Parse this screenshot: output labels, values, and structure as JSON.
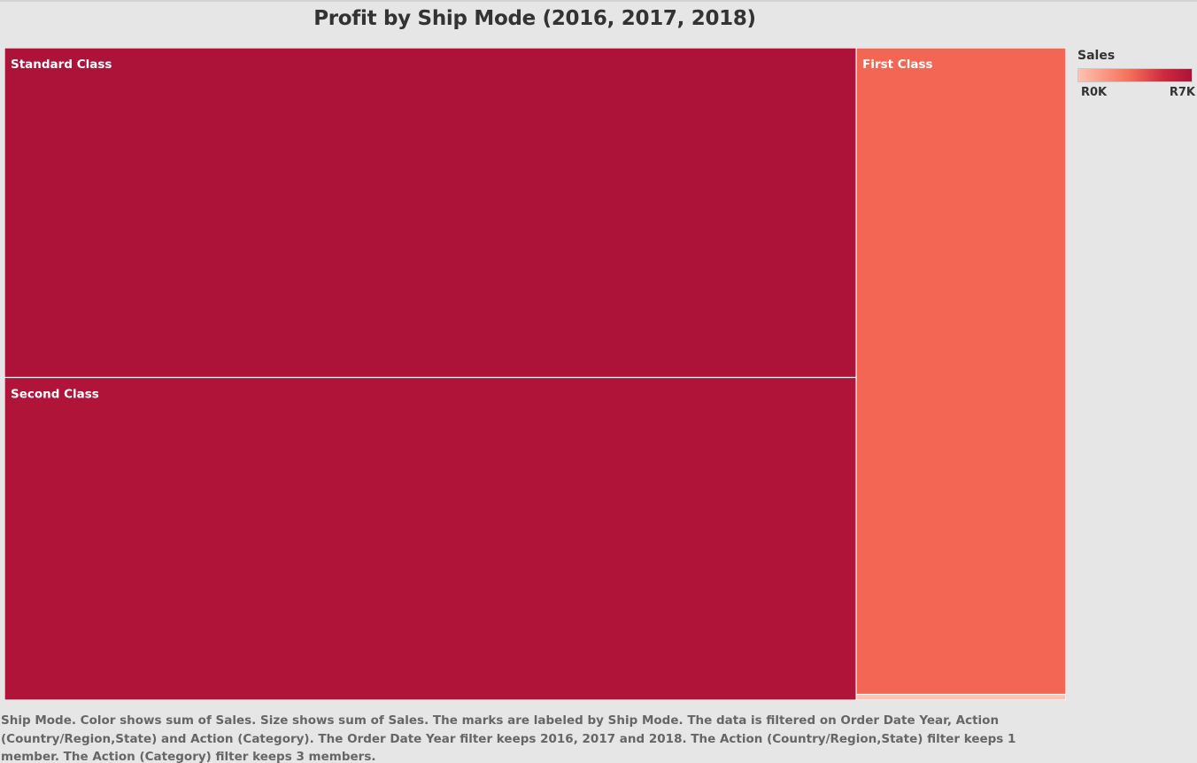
{
  "title": "Profit by Ship Mode (2016, 2017, 2018)",
  "colors": {
    "background": "#e6e6e6",
    "standard_class": "#ad1238",
    "second_class": "#b01439",
    "first_class": "#f26653",
    "same_day": "#ffc2b2",
    "border": "#ffffff",
    "label_text": "#ffffff"
  },
  "legend": {
    "title": "Sales",
    "min_label": "R0K",
    "max_label": "R7K",
    "gradient_from": "#ffc2b2",
    "gradient_to": "#ad1238"
  },
  "caption": "Ship Mode.  Color shows sum of Sales.  Size shows sum of Sales.  The marks are labeled by Ship Mode. The data is filtered on Order Date Year, Action (Country/Region,State) and Action (Category). The Order Date Year filter keeps 2016, 2017 and 2018. The Action (Country/Region,State) filter keeps 1 member. The Action (Category) filter keeps 3 members.",
  "chart_data": {
    "type": "treemap",
    "title": "Profit by Ship Mode (2016, 2017, 2018)",
    "size_measure": "Sales",
    "color_measure": "Sales",
    "color_range": [
      0,
      7000
    ],
    "items": [
      {
        "label": "Standard Class",
        "value": 7000,
        "color": "#ad1238"
      },
      {
        "label": "Second Class",
        "value": 6850,
        "color": "#b01439"
      },
      {
        "label": "First Class",
        "value": 3380,
        "color": "#f26653"
      },
      {
        "label": "",
        "value": 30,
        "color": "#ffc2b2"
      }
    ]
  }
}
